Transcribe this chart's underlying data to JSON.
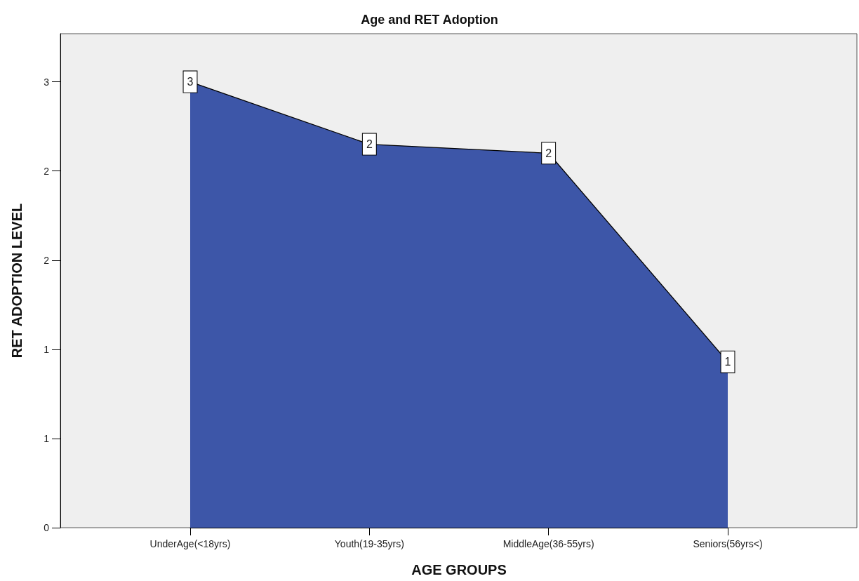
{
  "chart_data": {
    "type": "area",
    "title": "Age and RET Adoption",
    "xlabel": "AGE GROUPS",
    "ylabel": "RET ADOPTION LEVEL",
    "categories": [
      "UnderAge(<18yrs)",
      "Youth(19-35yrs)",
      "MiddleAge(36-55yrs)",
      "Seniors(56yrs<)"
    ],
    "values": [
      2.5,
      2.15,
      2.1,
      0.93
    ],
    "color": "#3d56a8",
    "value_labels": [
      "3",
      "2",
      "2",
      "1"
    ],
    "ylim": [
      0,
      2.77
    ],
    "yticks": [
      0,
      {
        "value": 0.5,
        "label": "1"
      },
      1,
      {
        "value": 1.5,
        "label": "2"
      },
      2,
      {
        "value": 2.5,
        "label": "3"
      }
    ]
  }
}
